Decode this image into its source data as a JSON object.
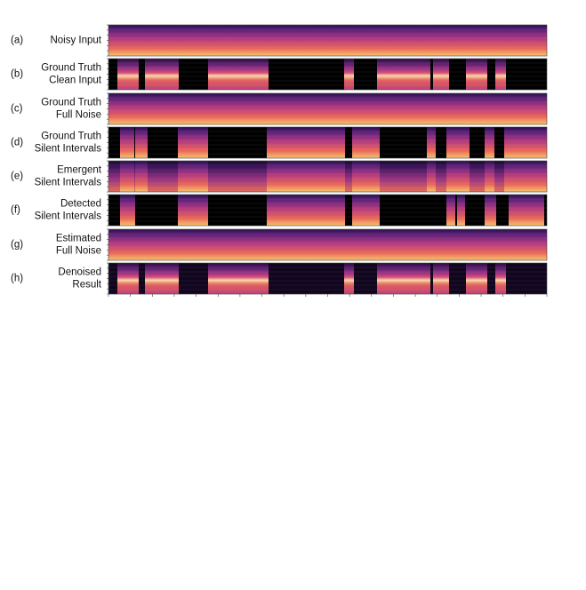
{
  "panels": [
    {
      "tag": "(a)",
      "label": [
        "Noisy Input"
      ]
    },
    {
      "tag": "(b)",
      "label": [
        "Ground Truth",
        "Clean Input"
      ]
    },
    {
      "tag": "(c)",
      "label": [
        "Ground Truth",
        "Full Noise"
      ]
    },
    {
      "tag": "(d)",
      "label": [
        "Ground Truth",
        "Silent Intervals"
      ]
    },
    {
      "tag": "(e)",
      "label": [
        "Emergent",
        "Silent Intervals"
      ]
    },
    {
      "tag": "(f)",
      "label": [
        "Detected",
        "Silent Intervals"
      ]
    },
    {
      "tag": "(g)",
      "label": [
        "Estimated",
        "Full Noise"
      ]
    },
    {
      "tag": "(h)",
      "label": [
        "Denoised",
        "Result"
      ]
    }
  ]
}
